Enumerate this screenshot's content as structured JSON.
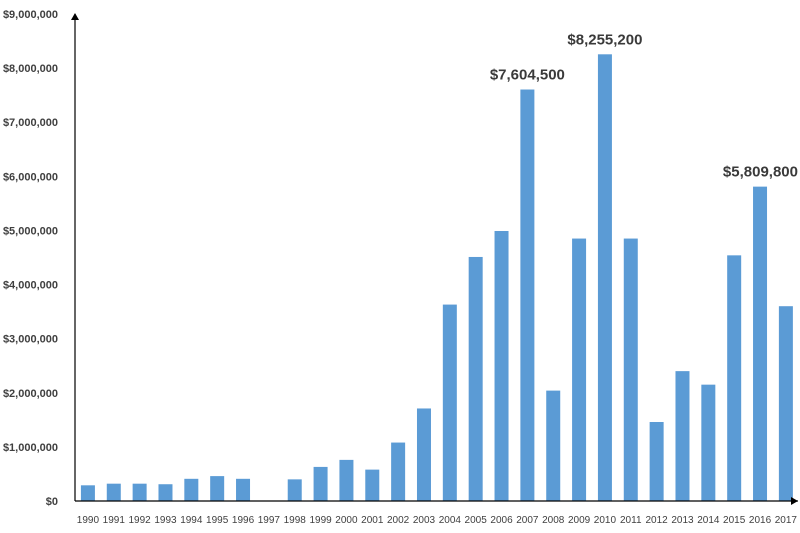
{
  "chart_data": {
    "type": "bar",
    "categories": [
      "1990",
      "1991",
      "1992",
      "1993",
      "1994",
      "1995",
      "1996",
      "1997",
      "1998",
      "1999",
      "2000",
      "2001",
      "2002",
      "2003",
      "2004",
      "2005",
      "2006",
      "2007",
      "2008",
      "2009",
      "2010",
      "2011",
      "2012",
      "2013",
      "2014",
      "2015",
      "2016",
      "2017"
    ],
    "values": [
      290000,
      320000,
      320000,
      310000,
      410000,
      460000,
      410000,
      0,
      400000,
      630000,
      760000,
      580000,
      1080000,
      1710000,
      3630000,
      4510000,
      4990000,
      7604500,
      2040000,
      4850000,
      8255200,
      4850000,
      1460000,
      2400000,
      2150000,
      4540000,
      5809800,
      3600000
    ],
    "ylim": [
      0,
      9000000
    ],
    "yticks": [
      {
        "value": 0,
        "label": "$0"
      },
      {
        "value": 1000000,
        "label": "$1,000,000"
      },
      {
        "value": 2000000,
        "label": "$2,000,000"
      },
      {
        "value": 3000000,
        "label": "$3,000,000"
      },
      {
        "value": 4000000,
        "label": "$4,000,000"
      },
      {
        "value": 5000000,
        "label": "$5,000,000"
      },
      {
        "value": 6000000,
        "label": "$6,000,000"
      },
      {
        "value": 7000000,
        "label": "$7,000,000"
      },
      {
        "value": 8000000,
        "label": "$8,000,000"
      },
      {
        "value": 9000000,
        "label": "$9,000,000"
      }
    ],
    "data_labels": [
      {
        "category": "2007",
        "label": "$7,604,500"
      },
      {
        "category": "2010",
        "label": "$8,255,200"
      },
      {
        "category": "2016",
        "label": "$5,809,800"
      }
    ],
    "bar_color": "#5b9bd5",
    "axis_color": "#000000",
    "grid": false,
    "legend": "none"
  }
}
